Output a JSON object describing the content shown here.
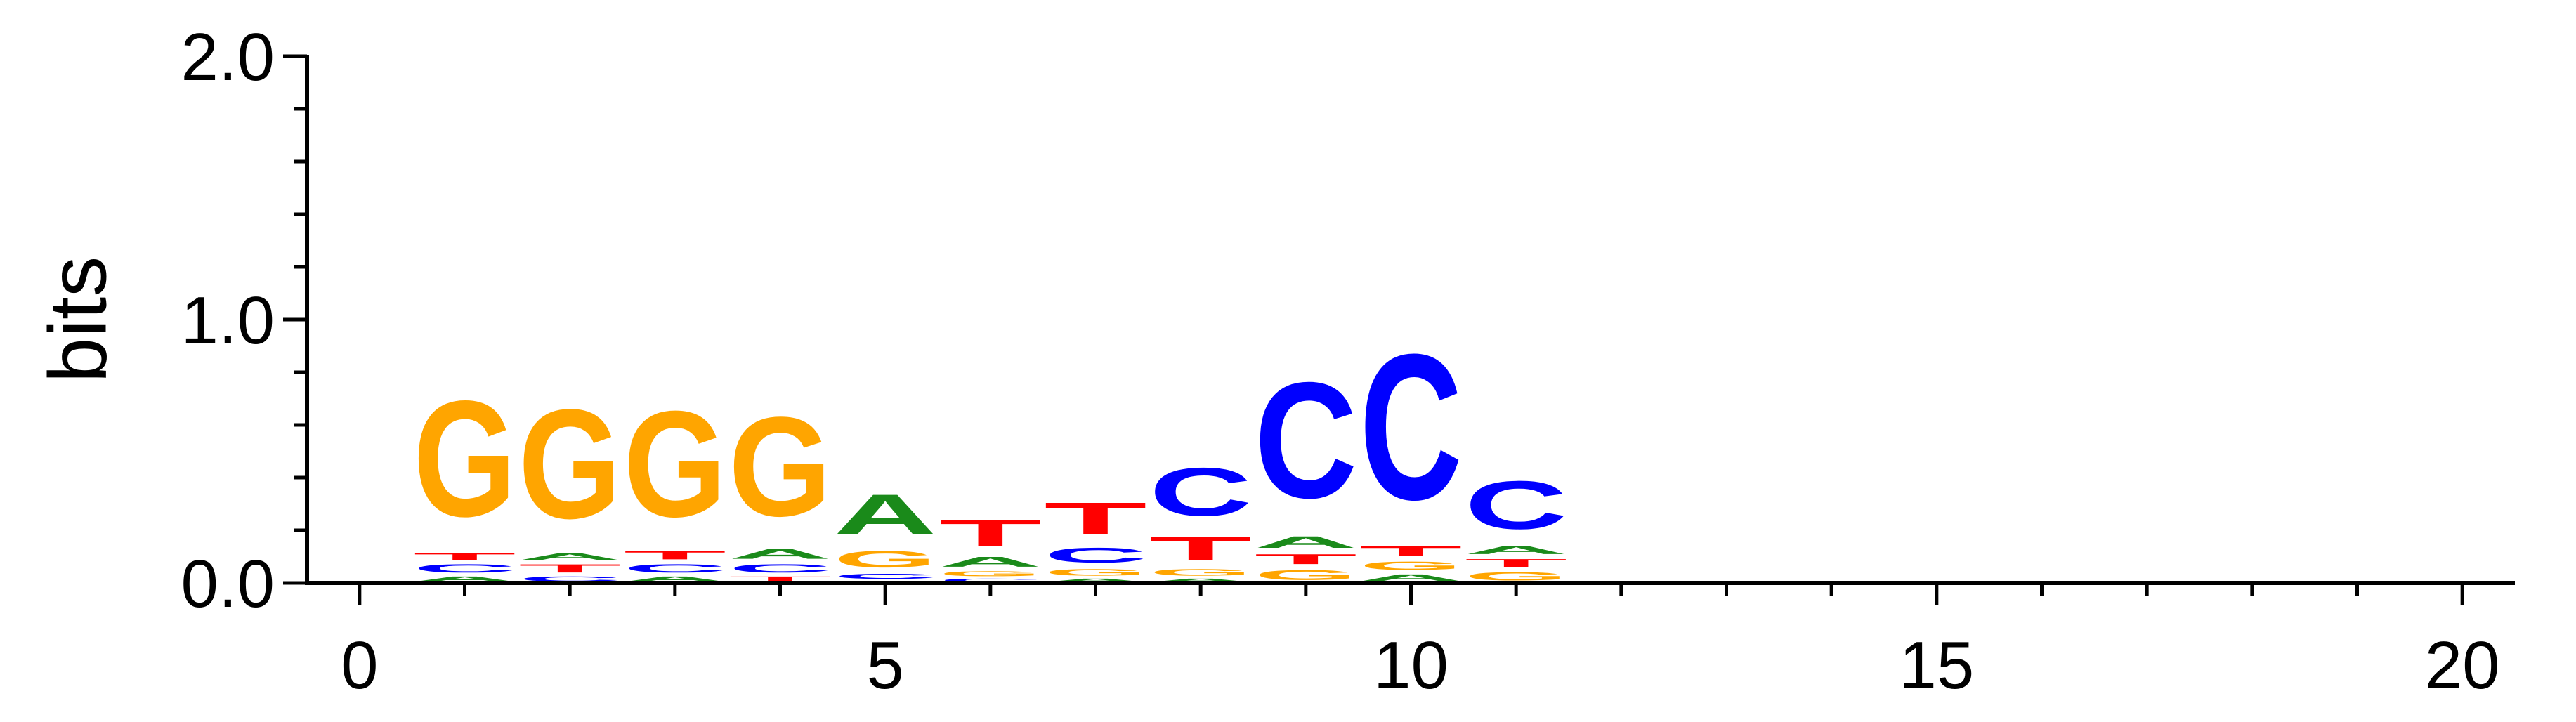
{
  "chart_data": {
    "type": "sequence-logo",
    "title": "",
    "xlabel": "",
    "ylabel": "bits",
    "xlim": [
      -0.5,
      20.5
    ],
    "ylim": [
      0,
      2
    ],
    "x_ticks_major": [
      0,
      5,
      10,
      15,
      20
    ],
    "x_tick_labels": [
      "0",
      "5",
      "10",
      "15",
      "20"
    ],
    "y_ticks_major": [
      0,
      1,
      2
    ],
    "y_tick_labels": [
      "0.0",
      "1.0",
      "2.0"
    ],
    "colors": {
      "A": "#1a8a1a",
      "C": "#0000ff",
      "G": "#ffa500",
      "T": "#ff0000"
    },
    "positions": [
      {
        "x": 1,
        "stack": [
          [
            "A",
            0.03
          ],
          [
            "C",
            0.05
          ],
          [
            "T",
            0.04
          ],
          [
            "G",
            0.7
          ]
        ]
      },
      {
        "x": 2,
        "stack": [
          [
            "C",
            0.03
          ],
          [
            "T",
            0.05
          ],
          [
            "A",
            0.04
          ],
          [
            "G",
            0.66
          ]
        ]
      },
      {
        "x": 3,
        "stack": [
          [
            "A",
            0.03
          ],
          [
            "C",
            0.05
          ],
          [
            "T",
            0.05
          ],
          [
            "G",
            0.64
          ]
        ]
      },
      {
        "x": 4,
        "stack": [
          [
            "T",
            0.03
          ],
          [
            "C",
            0.05
          ],
          [
            "A",
            0.06
          ],
          [
            "G",
            0.6
          ]
        ]
      },
      {
        "x": 5,
        "stack": [
          [
            "T",
            0.01
          ],
          [
            "C",
            0.03
          ],
          [
            "G",
            0.1
          ],
          [
            "A",
            0.24
          ]
        ]
      },
      {
        "x": 6,
        "stack": [
          [
            "C",
            0.02
          ],
          [
            "G",
            0.03
          ],
          [
            "A",
            0.06
          ],
          [
            "T",
            0.16
          ]
        ]
      },
      {
        "x": 7,
        "stack": [
          [
            "A",
            0.02
          ],
          [
            "G",
            0.04
          ],
          [
            "C",
            0.09
          ],
          [
            "T",
            0.19
          ]
        ]
      },
      {
        "x": 8,
        "stack": [
          [
            "A",
            0.02
          ],
          [
            "G",
            0.04
          ],
          [
            "T",
            0.14
          ],
          [
            "C",
            0.29
          ]
        ]
      },
      {
        "x": 9,
        "stack": [
          [
            "G",
            0.06
          ],
          [
            "T",
            0.06
          ],
          [
            "A",
            0.07
          ],
          [
            "C",
            0.7
          ]
        ]
      },
      {
        "x": 10,
        "stack": [
          [
            "A",
            0.04
          ],
          [
            "G",
            0.05
          ],
          [
            "T",
            0.06
          ],
          [
            "C",
            0.88
          ]
        ]
      },
      {
        "x": 11,
        "stack": [
          [
            "G",
            0.05
          ],
          [
            "T",
            0.05
          ],
          [
            "A",
            0.05
          ],
          [
            "C",
            0.29
          ]
        ]
      }
    ]
  }
}
